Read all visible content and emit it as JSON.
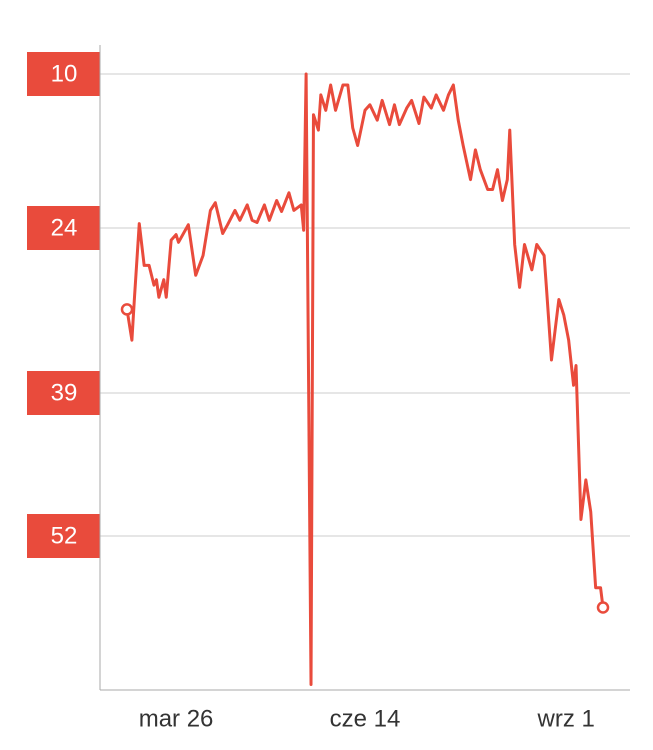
{
  "chart_data": {
    "type": "line",
    "x": [
      0,
      2,
      3,
      5,
      7,
      9,
      11,
      12,
      13,
      15,
      16,
      18,
      20,
      21,
      23,
      25,
      28,
      31,
      34,
      36,
      39,
      41,
      44,
      46,
      49,
      51,
      53,
      56,
      58,
      61,
      63,
      66,
      68,
      71,
      72,
      73,
      75,
      76,
      78,
      79,
      81,
      83,
      85,
      88,
      90,
      92,
      94,
      97,
      99,
      102,
      104,
      107,
      109,
      111,
      114,
      116,
      119,
      121,
      124,
      126,
      129,
      131,
      133,
      135,
      137,
      140,
      142,
      144,
      147,
      149,
      151,
      153,
      155,
      156,
      158,
      160,
      162,
      165,
      167,
      170,
      171,
      173,
      176,
      178,
      180,
      182,
      183,
      185,
      187,
      189,
      191,
      193,
      194
    ],
    "series": [
      {
        "color": "#e94b3c",
        "values": [
          31.4,
          34.2,
          30.5,
          23.6,
          27.4,
          27.4,
          29.2,
          28.7,
          30.3,
          28.7,
          30.3,
          25.1,
          24.6,
          25.3,
          24.5,
          23.7,
          28.3,
          26.5,
          22.4,
          21.7,
          24.5,
          23.7,
          22.4,
          23.3,
          21.9,
          23.3,
          23.5,
          21.9,
          23.3,
          21.5,
          22.5,
          20.8,
          22.4,
          21.9,
          24.2,
          10,
          65.5,
          13.7,
          15.1,
          11.9,
          13.3,
          11,
          13.3,
          11,
          11,
          14.9,
          16.5,
          13.3,
          12.8,
          14.2,
          12.4,
          14.6,
          12.8,
          14.6,
          13.1,
          12.4,
          14.5,
          12.1,
          13.1,
          11.9,
          13.3,
          11.9,
          11,
          14.2,
          16.5,
          19.6,
          16.9,
          18.7,
          20.5,
          20.5,
          18.7,
          21.5,
          19.6,
          15.1,
          25.5,
          29.4,
          25.5,
          27.8,
          25.5,
          26.5,
          29.6,
          36,
          30.5,
          31.9,
          34.2,
          38.3,
          36.5,
          50.5,
          46.9,
          49.8,
          56.7,
          56.7,
          58.5
        ]
      }
    ],
    "xlim": [
      -11,
      205
    ],
    "xticks": [
      {
        "value": 20,
        "label": "mar 26"
      },
      {
        "value": 97,
        "label": "cze 14"
      },
      {
        "value": 179,
        "label": "wrz 1"
      }
    ],
    "ylim": [
      10,
      66
    ],
    "y_reversed": true,
    "yticks": [
      10,
      24,
      39,
      52
    ],
    "grid": true
  }
}
